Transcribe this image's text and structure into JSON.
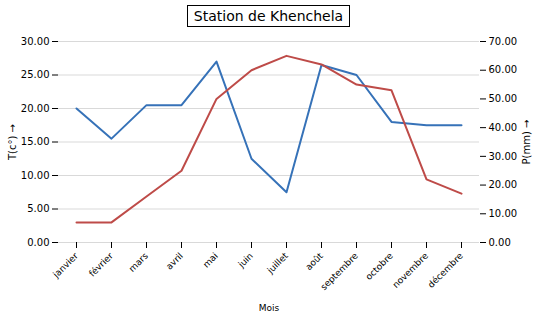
{
  "chart_data": {
    "type": "line",
    "title": "Station de Khenchela",
    "xlabel": "Mois",
    "ylabel": "T(c°)",
    "y2label": "P(mm)",
    "categories": [
      "janvier",
      "février",
      "mars",
      "avril",
      "mai",
      "juin",
      "juillet",
      "août",
      "septembre",
      "octobre",
      "novembre",
      "décembre"
    ],
    "series": [
      {
        "color": "#3672B8",
        "values": [
          20.0,
          15.5,
          20.5,
          20.5,
          27.0,
          12.5,
          7.5,
          26.5,
          25.0,
          18.0,
          17.5,
          17.5
        ]
      },
      {
        "color": "#BE4B48",
        "axis": "y2",
        "values": [
          7.0,
          7.0,
          16.0,
          25.0,
          50.0,
          60.0,
          65.0,
          62.0,
          55.0,
          53.0,
          22.0,
          17.0
        ]
      }
    ],
    "ylim": [
      0,
      30
    ],
    "yticks": [
      {
        "value": 0,
        "label": "0.00"
      },
      {
        "value": 5,
        "label": "5.00"
      },
      {
        "value": 10,
        "label": "10.00"
      },
      {
        "value": 15,
        "label": "15.00"
      },
      {
        "value": 20,
        "label": "20.00"
      },
      {
        "value": 25,
        "label": "25.00"
      },
      {
        "value": 30,
        "label": "30.00"
      }
    ],
    "y2lim": [
      0,
      70
    ],
    "y2ticks": [
      {
        "value": 0,
        "label": "0.00"
      },
      {
        "value": 10,
        "label": "10.00"
      },
      {
        "value": 20,
        "label": "20.00"
      },
      {
        "value": 30,
        "label": "30.00"
      },
      {
        "value": 40,
        "label": "40.00"
      },
      {
        "value": 50,
        "label": "50.00"
      },
      {
        "value": 60,
        "label": "60.00"
      },
      {
        "value": 70,
        "label": "70.00"
      }
    ],
    "grid": true
  }
}
